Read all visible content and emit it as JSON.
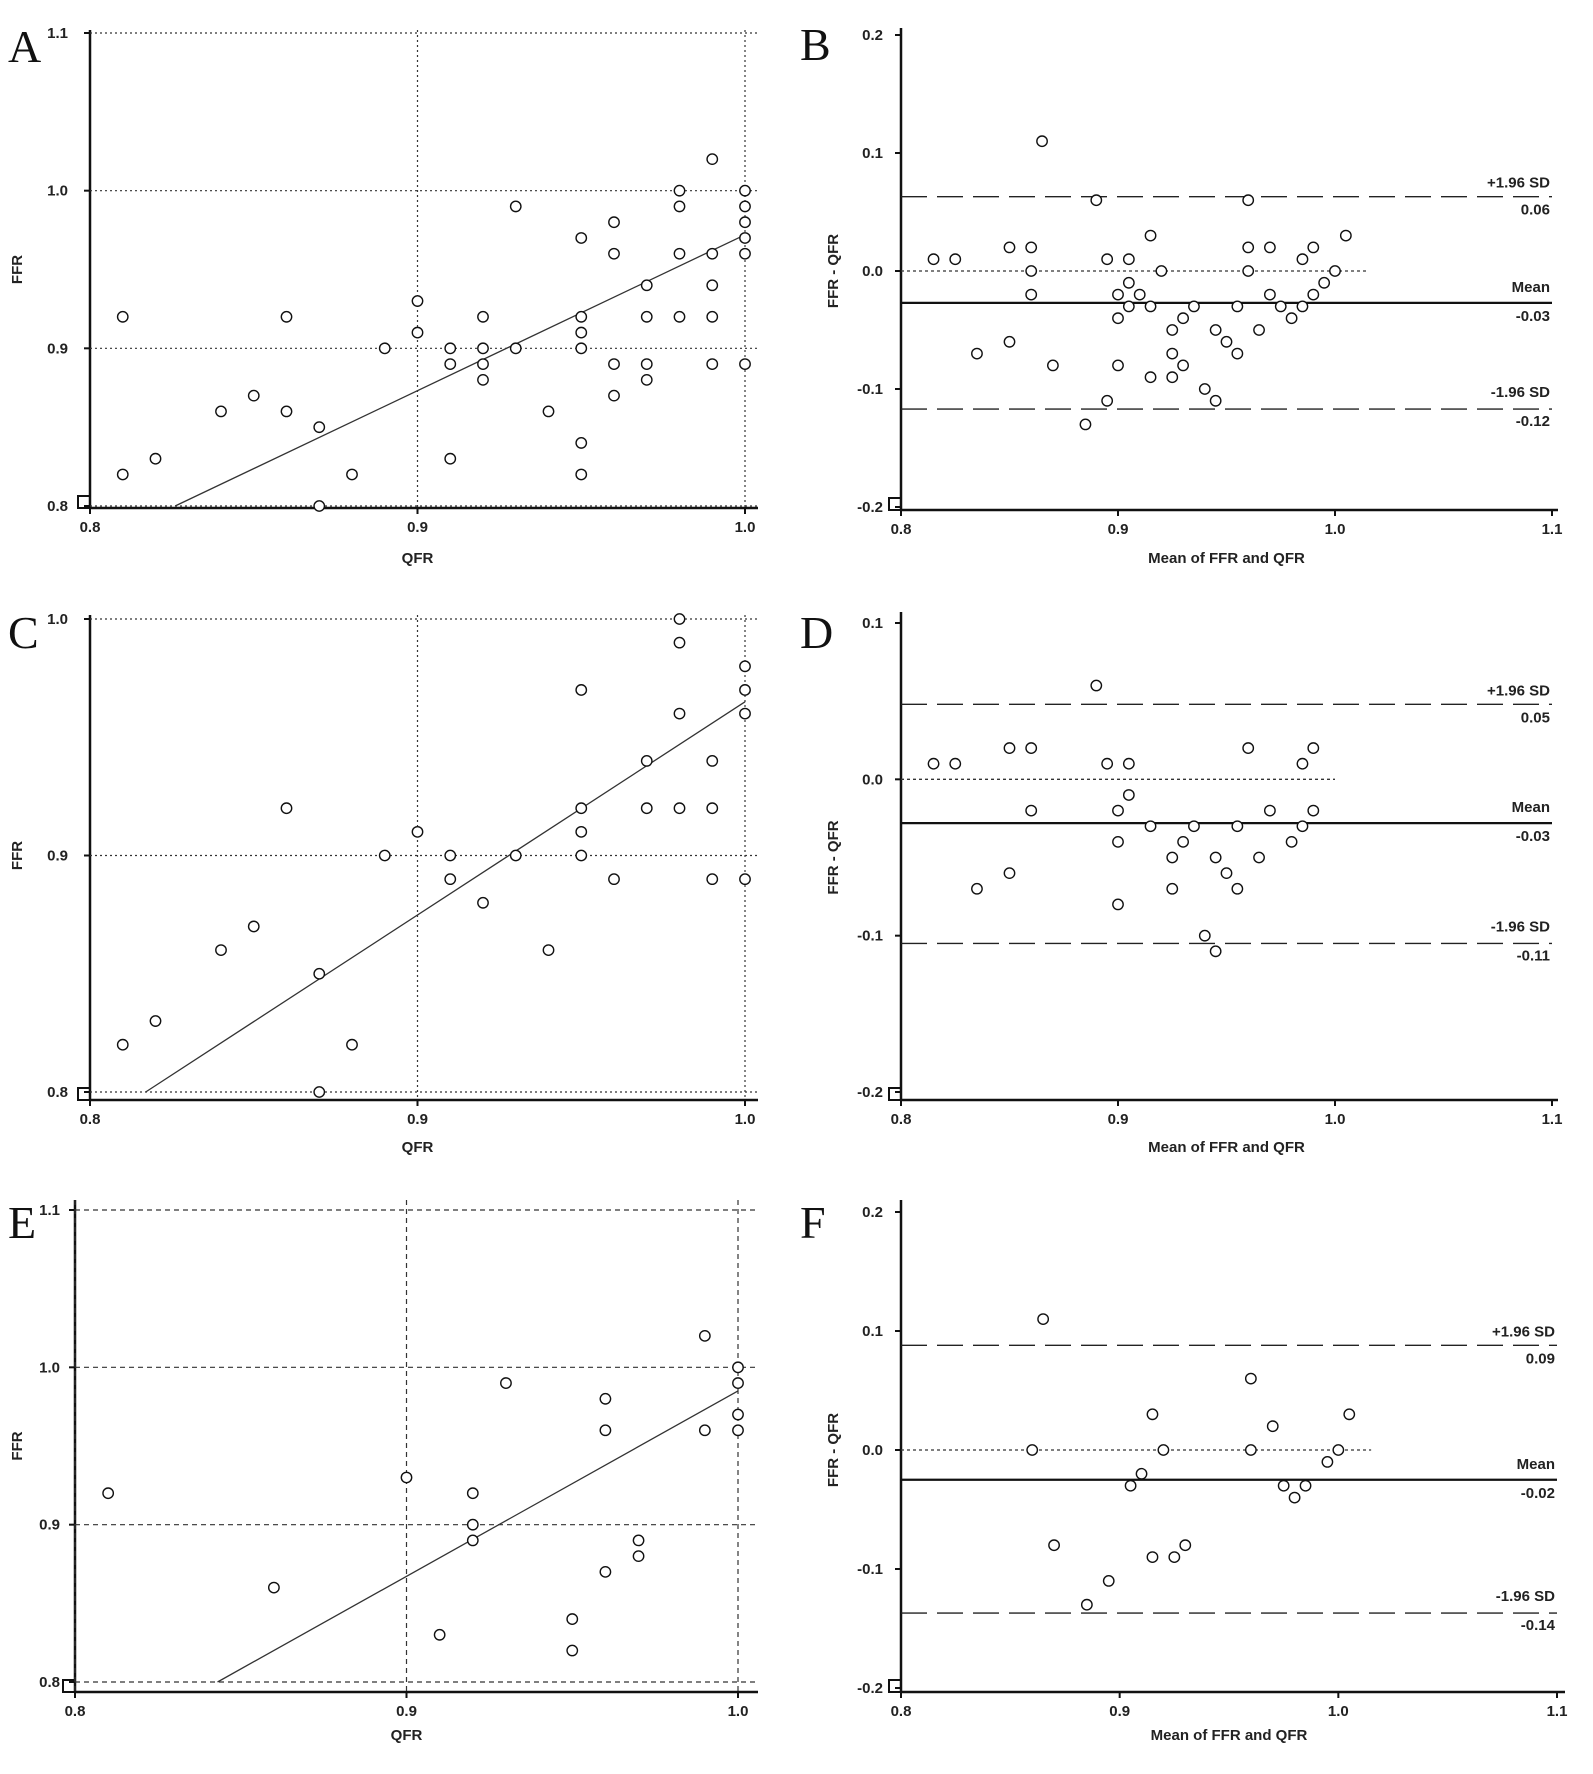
{
  "chart_data": [
    {
      "panel": "A",
      "type": "scatter",
      "xlabel": "QFR",
      "ylabel": "FFR",
      "xlim": [
        0.8,
        1.0
      ],
      "ylim": [
        0.8,
        1.1
      ],
      "xticks": [
        "0.8",
        "0.9",
        "1.0"
      ],
      "yticks": [
        "0.8",
        "0.9",
        "1.0",
        "1.1"
      ],
      "gridlines_x": [
        0.9,
        1.0
      ],
      "gridlines_y": [
        0.8,
        0.9,
        1.0,
        1.1
      ],
      "grid_style": "dotted",
      "regression_line": [
        [
          0.826,
          0.8
        ],
        [
          1.0,
          0.972
        ]
      ],
      "points": [
        [
          0.81,
          0.92
        ],
        [
          0.81,
          0.82
        ],
        [
          0.82,
          0.83
        ],
        [
          0.84,
          0.86
        ],
        [
          0.85,
          0.87
        ],
        [
          0.86,
          0.92
        ],
        [
          0.86,
          0.86
        ],
        [
          0.87,
          0.85
        ],
        [
          0.87,
          0.8
        ],
        [
          0.88,
          0.82
        ],
        [
          0.89,
          0.9
        ],
        [
          0.9,
          0.93
        ],
        [
          0.9,
          0.91
        ],
        [
          0.91,
          0.9
        ],
        [
          0.91,
          0.89
        ],
        [
          0.91,
          0.83
        ],
        [
          0.92,
          0.92
        ],
        [
          0.92,
          0.9
        ],
        [
          0.92,
          0.89
        ],
        [
          0.92,
          0.88
        ],
        [
          0.93,
          0.99
        ],
        [
          0.93,
          0.9
        ],
        [
          0.94,
          0.86
        ],
        [
          0.95,
          0.97
        ],
        [
          0.95,
          0.92
        ],
        [
          0.95,
          0.91
        ],
        [
          0.95,
          0.9
        ],
        [
          0.95,
          0.84
        ],
        [
          0.95,
          0.82
        ],
        [
          0.96,
          0.98
        ],
        [
          0.96,
          0.96
        ],
        [
          0.96,
          0.89
        ],
        [
          0.96,
          0.87
        ],
        [
          0.97,
          0.94
        ],
        [
          0.97,
          0.92
        ],
        [
          0.97,
          0.89
        ],
        [
          0.97,
          0.88
        ],
        [
          0.98,
          1.0
        ],
        [
          0.98,
          0.99
        ],
        [
          0.98,
          0.96
        ],
        [
          0.98,
          0.92
        ],
        [
          0.99,
          1.02
        ],
        [
          0.99,
          0.96
        ],
        [
          0.99,
          0.94
        ],
        [
          0.99,
          0.92
        ],
        [
          0.99,
          0.89
        ],
        [
          1.0,
          1.0
        ],
        [
          1.0,
          0.99
        ],
        [
          1.0,
          0.98
        ],
        [
          1.0,
          0.97
        ],
        [
          1.0,
          0.96
        ],
        [
          1.0,
          0.89
        ]
      ]
    },
    {
      "panel": "B",
      "type": "scatter",
      "xlabel": "Mean of FFR and QFR",
      "ylabel": "FFR - QFR",
      "xlim": [
        0.8,
        1.1
      ],
      "ylim": [
        -0.2,
        0.2
      ],
      "xticks": [
        "0.8",
        "0.9",
        "1.0",
        "1.1"
      ],
      "yticks": [
        "-0.2",
        "-0.1",
        "0.0",
        "0.1",
        "0.2"
      ],
      "zero_line_xmax": 1.015,
      "mean": -0.027,
      "upper_loa": 0.063,
      "lower_loa": -0.117,
      "labels": {
        "upper": "+1.96 SD",
        "upper_value": "0.06",
        "mean": "Mean",
        "mean_value": "-0.03",
        "lower": "-1.96 SD",
        "lower_value": "-0.12"
      },
      "points": [
        [
          0.815,
          0.01
        ],
        [
          0.825,
          0.01
        ],
        [
          0.835,
          -0.07
        ],
        [
          0.85,
          0.02
        ],
        [
          0.85,
          -0.06
        ],
        [
          0.86,
          0.02
        ],
        [
          0.86,
          0.0
        ],
        [
          0.86,
          -0.02
        ],
        [
          0.865,
          0.11
        ],
        [
          0.87,
          -0.08
        ],
        [
          0.885,
          -0.13
        ],
        [
          0.89,
          0.06
        ],
        [
          0.895,
          0.01
        ],
        [
          0.895,
          -0.11
        ],
        [
          0.9,
          -0.02
        ],
        [
          0.9,
          -0.04
        ],
        [
          0.9,
          -0.08
        ],
        [
          0.905,
          0.01
        ],
        [
          0.905,
          -0.01
        ],
        [
          0.905,
          -0.03
        ],
        [
          0.91,
          -0.02
        ],
        [
          0.915,
          0.03
        ],
        [
          0.915,
          -0.03
        ],
        [
          0.915,
          -0.09
        ],
        [
          0.92,
          0.0
        ],
        [
          0.925,
          -0.05
        ],
        [
          0.925,
          -0.07
        ],
        [
          0.925,
          -0.09
        ],
        [
          0.93,
          -0.04
        ],
        [
          0.93,
          -0.08
        ],
        [
          0.935,
          -0.03
        ],
        [
          0.94,
          -0.1
        ],
        [
          0.945,
          -0.05
        ],
        [
          0.945,
          -0.11
        ],
        [
          0.95,
          -0.06
        ],
        [
          0.955,
          -0.03
        ],
        [
          0.955,
          -0.07
        ],
        [
          0.96,
          0.06
        ],
        [
          0.96,
          0.02
        ],
        [
          0.96,
          0.0
        ],
        [
          0.965,
          -0.05
        ],
        [
          0.97,
          0.02
        ],
        [
          0.97,
          -0.02
        ],
        [
          0.975,
          -0.03
        ],
        [
          0.98,
          -0.04
        ],
        [
          0.985,
          0.01
        ],
        [
          0.985,
          -0.03
        ],
        [
          0.99,
          0.02
        ],
        [
          0.99,
          -0.02
        ],
        [
          0.995,
          -0.01
        ],
        [
          1.0,
          0.0
        ],
        [
          1.005,
          0.03
        ]
      ]
    },
    {
      "panel": "C",
      "type": "scatter",
      "xlabel": "QFR",
      "ylabel": "FFR",
      "xlim": [
        0.8,
        1.0
      ],
      "ylim": [
        0.8,
        1.0
      ],
      "xticks": [
        "0.8",
        "0.9",
        "1.0"
      ],
      "yticks": [
        "0.8",
        "0.9",
        "1.0"
      ],
      "gridlines_x": [
        0.9,
        1.0
      ],
      "gridlines_y": [
        0.8,
        0.9,
        1.0
      ],
      "grid_style": "dotted",
      "regression_line": [
        [
          0.817,
          0.8
        ],
        [
          1.0,
          0.965
        ]
      ],
      "points": [
        [
          0.81,
          0.82
        ],
        [
          0.82,
          0.83
        ],
        [
          0.84,
          0.86
        ],
        [
          0.85,
          0.87
        ],
        [
          0.86,
          0.92
        ],
        [
          0.87,
          0.85
        ],
        [
          0.87,
          0.8
        ],
        [
          0.88,
          0.82
        ],
        [
          0.89,
          0.9
        ],
        [
          0.9,
          0.91
        ],
        [
          0.91,
          0.9
        ],
        [
          0.91,
          0.89
        ],
        [
          0.92,
          0.88
        ],
        [
          0.93,
          0.9
        ],
        [
          0.94,
          0.86
        ],
        [
          0.95,
          0.97
        ],
        [
          0.95,
          0.92
        ],
        [
          0.95,
          0.91
        ],
        [
          0.95,
          0.9
        ],
        [
          0.96,
          0.89
        ],
        [
          0.97,
          0.94
        ],
        [
          0.97,
          0.92
        ],
        [
          0.98,
          1.0
        ],
        [
          0.98,
          0.99
        ],
        [
          0.98,
          0.96
        ],
        [
          0.98,
          0.92
        ],
        [
          0.99,
          0.94
        ],
        [
          0.99,
          0.92
        ],
        [
          0.99,
          0.89
        ],
        [
          1.0,
          0.98
        ],
        [
          1.0,
          0.97
        ],
        [
          1.0,
          0.96
        ],
        [
          1.0,
          0.89
        ]
      ]
    },
    {
      "panel": "D",
      "type": "scatter",
      "xlabel": "Mean of FFR and QFR",
      "ylabel": "FFR - QFR",
      "xlim": [
        0.8,
        1.1
      ],
      "ylim": [
        -0.2,
        0.1
      ],
      "xticks": [
        "0.8",
        "0.9",
        "1.0",
        "1.1"
      ],
      "yticks": [
        "-0.2",
        "-0.1",
        "0.0",
        "0.1"
      ],
      "zero_line_xmax": 1.0,
      "mean": -0.028,
      "upper_loa": 0.048,
      "lower_loa": -0.105,
      "labels": {
        "upper": "+1.96 SD",
        "upper_value": "0.05",
        "mean": "Mean",
        "mean_value": "-0.03",
        "lower": "-1.96 SD",
        "lower_value": "-0.11"
      },
      "points": [
        [
          0.815,
          0.01
        ],
        [
          0.825,
          0.01
        ],
        [
          0.835,
          -0.07
        ],
        [
          0.85,
          0.02
        ],
        [
          0.85,
          -0.06
        ],
        [
          0.86,
          0.02
        ],
        [
          0.86,
          -0.02
        ],
        [
          0.89,
          0.06
        ],
        [
          0.895,
          0.01
        ],
        [
          0.9,
          -0.02
        ],
        [
          0.9,
          -0.04
        ],
        [
          0.9,
          -0.08
        ],
        [
          0.905,
          0.01
        ],
        [
          0.905,
          -0.01
        ],
        [
          0.915,
          -0.03
        ],
        [
          0.925,
          -0.05
        ],
        [
          0.925,
          -0.07
        ],
        [
          0.93,
          -0.04
        ],
        [
          0.935,
          -0.03
        ],
        [
          0.94,
          -0.1
        ],
        [
          0.945,
          -0.05
        ],
        [
          0.945,
          -0.11
        ],
        [
          0.95,
          -0.06
        ],
        [
          0.955,
          -0.03
        ],
        [
          0.955,
          -0.07
        ],
        [
          0.96,
          0.02
        ],
        [
          0.965,
          -0.05
        ],
        [
          0.97,
          -0.02
        ],
        [
          0.98,
          -0.04
        ],
        [
          0.985,
          0.01
        ],
        [
          0.985,
          -0.03
        ],
        [
          0.99,
          0.02
        ],
        [
          0.99,
          -0.02
        ]
      ]
    },
    {
      "panel": "E",
      "type": "scatter",
      "xlabel": "QFR",
      "ylabel": "FFR",
      "xlim": [
        0.8,
        1.0
      ],
      "ylim": [
        0.8,
        1.1
      ],
      "xticks": [
        "0.8",
        "0.9",
        "1.0"
      ],
      "yticks": [
        "0.8",
        "0.9",
        "1.0",
        "1.1"
      ],
      "gridlines_x": [
        0.8,
        0.9,
        1.0
      ],
      "gridlines_y": [
        0.8,
        0.9,
        1.0,
        1.1
      ],
      "grid_style": "dashed",
      "regression_line": [
        [
          0.843,
          0.8
        ],
        [
          1.0,
          0.985
        ]
      ],
      "points": [
        [
          0.81,
          0.92
        ],
        [
          0.86,
          0.86
        ],
        [
          0.9,
          0.93
        ],
        [
          0.91,
          0.83
        ],
        [
          0.92,
          0.92
        ],
        [
          0.92,
          0.9
        ],
        [
          0.92,
          0.89
        ],
        [
          0.93,
          0.99
        ],
        [
          0.95,
          0.84
        ],
        [
          0.95,
          0.82
        ],
        [
          0.96,
          0.98
        ],
        [
          0.96,
          0.96
        ],
        [
          0.96,
          0.87
        ],
        [
          0.97,
          0.89
        ],
        [
          0.97,
          0.88
        ],
        [
          0.99,
          1.02
        ],
        [
          0.99,
          0.96
        ],
        [
          1.0,
          1.0
        ],
        [
          1.0,
          0.99
        ],
        [
          1.0,
          0.97
        ],
        [
          1.0,
          0.96
        ]
      ]
    },
    {
      "panel": "F",
      "type": "scatter",
      "xlabel": "Mean of FFR and QFR",
      "ylabel": "FFR - QFR",
      "xlim": [
        0.8,
        1.1
      ],
      "ylim": [
        -0.2,
        0.2
      ],
      "xticks": [
        "0.8",
        "0.9",
        "1.0",
        "1.1"
      ],
      "yticks": [
        "-0.2",
        "-0.1",
        "0.0",
        "0.1",
        "0.2"
      ],
      "zero_line_xmax": 1.015,
      "mean": -0.025,
      "upper_loa": 0.088,
      "lower_loa": -0.137,
      "labels": {
        "upper": "+1.96 SD",
        "upper_value": "0.09",
        "mean": "Mean",
        "mean_value": "-0.02",
        "lower": "-1.96 SD",
        "lower_value": "-0.14"
      },
      "points": [
        [
          0.86,
          0.0
        ],
        [
          0.865,
          0.11
        ],
        [
          0.87,
          -0.08
        ],
        [
          0.885,
          -0.13
        ],
        [
          0.895,
          -0.11
        ],
        [
          0.905,
          -0.03
        ],
        [
          0.91,
          -0.02
        ],
        [
          0.915,
          0.03
        ],
        [
          0.915,
          -0.09
        ],
        [
          0.92,
          0.0
        ],
        [
          0.925,
          -0.09
        ],
        [
          0.93,
          -0.08
        ],
        [
          0.96,
          0.06
        ],
        [
          0.96,
          0.0
        ],
        [
          0.97,
          0.02
        ],
        [
          0.975,
          -0.03
        ],
        [
          0.98,
          -0.04
        ],
        [
          0.985,
          -0.03
        ],
        [
          0.995,
          -0.01
        ],
        [
          1.0,
          0.0
        ],
        [
          1.005,
          0.03
        ]
      ]
    }
  ]
}
